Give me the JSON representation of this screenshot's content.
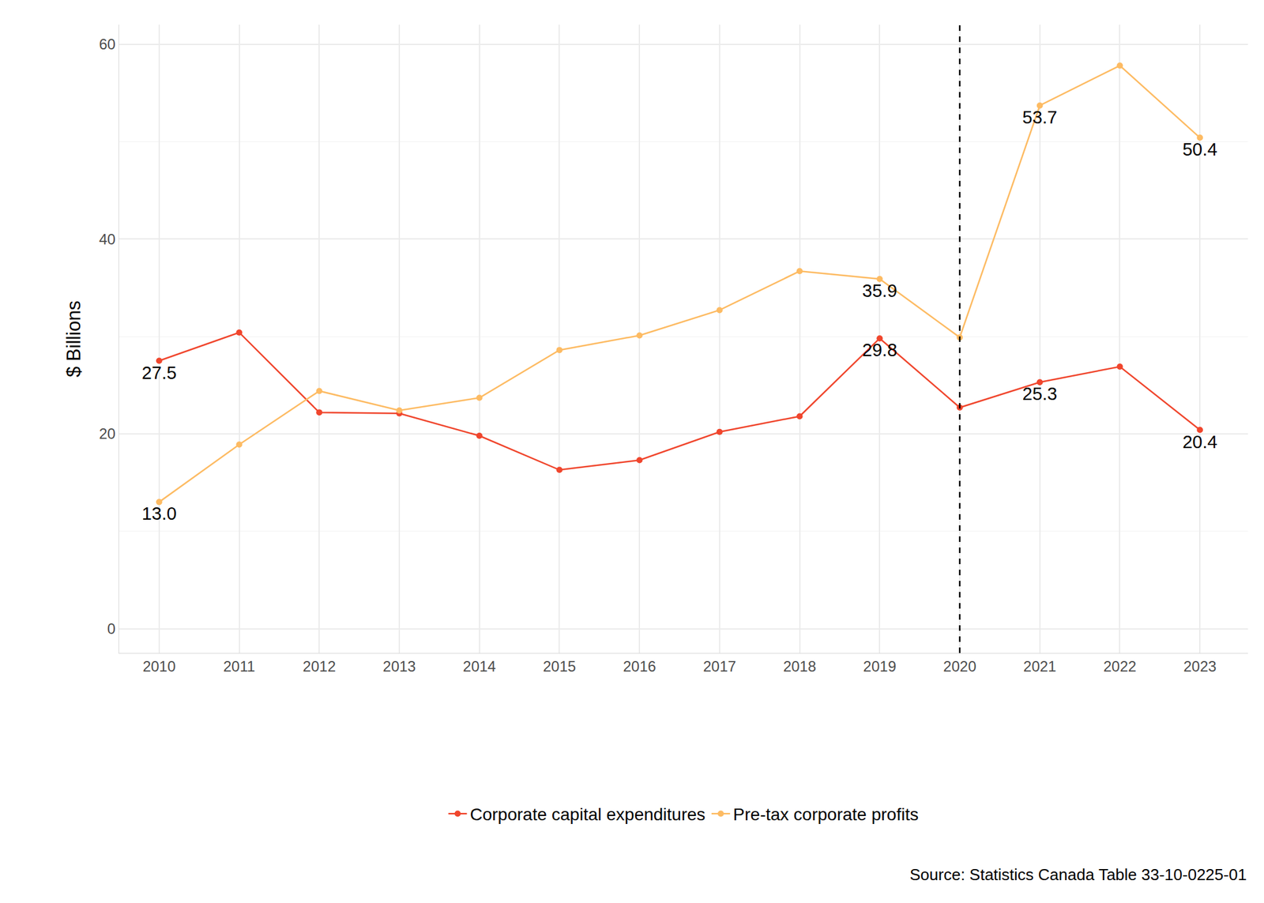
{
  "chart_data": {
    "type": "line",
    "y_label": "$ Billions",
    "source": "Source: Statistics Canada Table 33-10-0225-01",
    "x": [
      2010,
      2011,
      2012,
      2013,
      2014,
      2015,
      2016,
      2017,
      2018,
      2019,
      2020,
      2021,
      2022,
      2023
    ],
    "xlim": [
      2009.5,
      2023.6
    ],
    "xticks": [
      2010,
      2011,
      2012,
      2013,
      2014,
      2015,
      2016,
      2017,
      2018,
      2019,
      2020,
      2021,
      2022,
      2023
    ],
    "ylim": [
      -2.5,
      62
    ],
    "yticks": [
      0,
      20,
      40,
      60
    ],
    "grid": true,
    "legend": "bottom",
    "marker": "circle",
    "reference_line": {
      "x": 2020,
      "line_style": "dash"
    },
    "series": [
      {
        "name": "Corporate capital expenditures",
        "color": "#f0462d",
        "values": [
          27.5,
          30.4,
          22.2,
          22.1,
          19.8,
          16.3,
          17.3,
          20.2,
          21.8,
          29.8,
          22.7,
          25.3,
          26.9,
          20.4
        ],
        "value_labels": [
          "27.5",
          null,
          null,
          null,
          null,
          null,
          null,
          null,
          null,
          "29.8",
          null,
          "25.3",
          null,
          "20.4"
        ]
      },
      {
        "name": "Pre-tax corporate profits",
        "color": "#fdbb63",
        "values": [
          13.0,
          18.9,
          24.4,
          22.4,
          23.7,
          28.6,
          30.1,
          32.7,
          36.7,
          35.9,
          29.9,
          53.7,
          57.8,
          50.4
        ],
        "value_labels": [
          "13.0",
          null,
          null,
          null,
          null,
          null,
          null,
          null,
          null,
          "35.9",
          null,
          "53.7",
          null,
          "50.4"
        ]
      }
    ]
  }
}
